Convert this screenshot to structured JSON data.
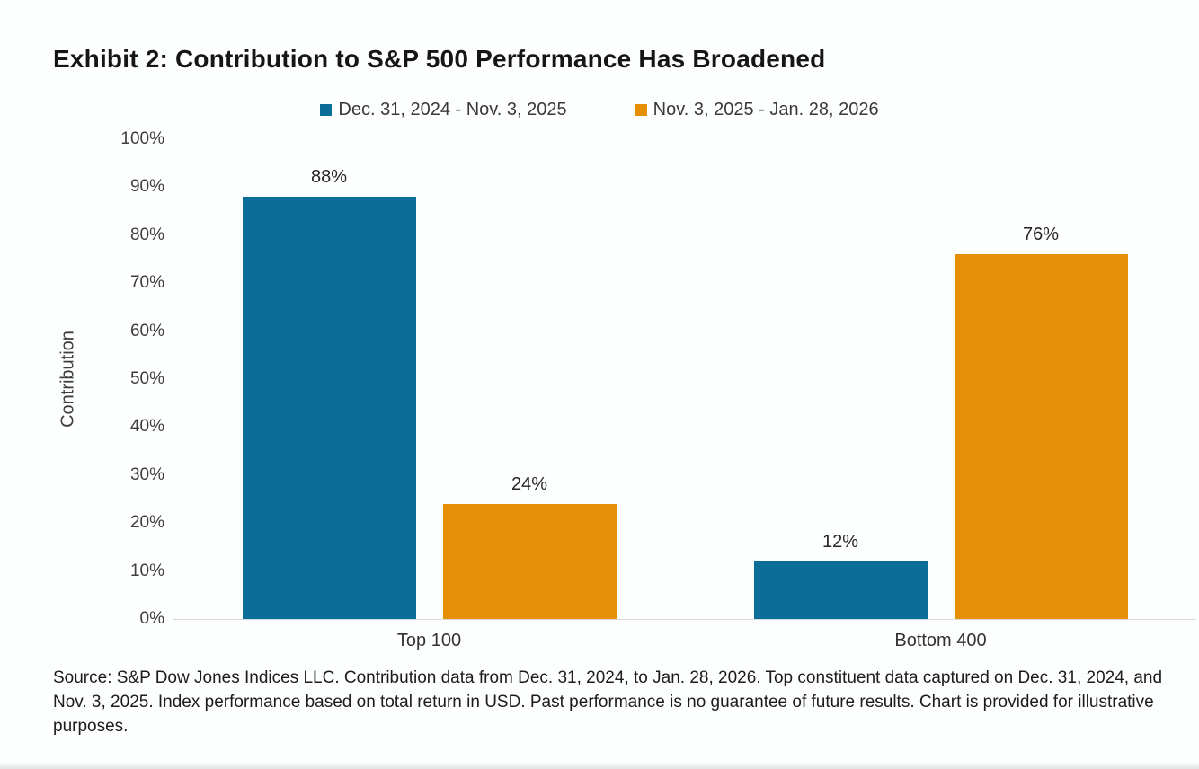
{
  "page": {
    "title": "Exhibit 2: Contribution to S&P 500 Performance Has Broadened",
    "source_note": "Source: S&P Dow Jones Indices LLC. Contribution data from Dec. 31, 2024, to Jan. 28, 2026. Top constituent data captured on Dec. 31, 2024, and Nov. 3, 2025. Index performance based on total return in USD. Past performance is no guarantee of future results. Chart is provided for illustrative purposes."
  },
  "colors": {
    "series1": "#0a6e98",
    "series2": "#e69008",
    "axis_line": "#d9d9d9",
    "title_text": "#161616",
    "body_text": "#3d3d3d"
  },
  "chart_data": {
    "type": "bar",
    "title": "Exhibit 2: Contribution to S&P 500 Performance Has Broadened",
    "categories": [
      "Top 100",
      "Bottom 400"
    ],
    "series": [
      {
        "name": "Dec. 31, 2024 - Nov. 3, 2025",
        "values": [
          88,
          12
        ],
        "data_labels": [
          "88%",
          "12%"
        ],
        "color": "#0a6e98"
      },
      {
        "name": "Nov. 3, 2025 - Jan. 28, 2026",
        "values": [
          24,
          76
        ],
        "data_labels": [
          "24%",
          "76%"
        ],
        "color": "#e69008"
      }
    ],
    "xlabel": "",
    "ylabel": "Contribution",
    "ylim": [
      0,
      100
    ],
    "ytick_step": 10,
    "ytick_labels": [
      "0%",
      "10%",
      "20%",
      "30%",
      "40%",
      "50%",
      "60%",
      "70%",
      "80%",
      "90%",
      "100%"
    ],
    "grid": false,
    "legend_position": "top"
  }
}
